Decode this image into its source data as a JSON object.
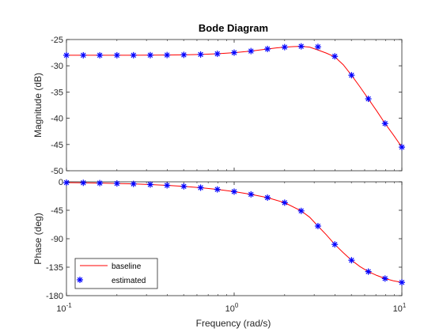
{
  "chart_data": {
    "type": "line",
    "title": "Bode Diagram",
    "xlabel": "Frequency  (rad/s)",
    "x_scale": "log",
    "xlim": [
      0.1,
      10
    ],
    "x_ticks": [
      {
        "value": 0.1,
        "base": "10",
        "exp": "-1"
      },
      {
        "value": 1,
        "base": "10",
        "exp": "0"
      },
      {
        "value": 10,
        "base": "10",
        "exp": "1"
      }
    ],
    "grid": false,
    "legend_position": "bottom-left",
    "colors": {
      "baseline": "#ff0000",
      "estimated": "#0000ff",
      "axis": "#262626"
    },
    "series": [
      {
        "name": "baseline",
        "style": "line"
      },
      {
        "name": "estimated",
        "style": "star-markers"
      }
    ],
    "panels": [
      {
        "ylabel": "Magnitude (dB)",
        "ylim": [
          -50,
          -25
        ],
        "yticks": [
          -50,
          -45,
          -40,
          -35,
          -30,
          -25
        ],
        "baseline": {
          "x": [
            0.1,
            0.126,
            0.158,
            0.2,
            0.251,
            0.316,
            0.398,
            0.501,
            0.631,
            0.794,
            1.0,
            1.26,
            1.58,
            1.78,
            2.0,
            2.24,
            2.51,
            2.82,
            3.16,
            3.55,
            3.98,
            4.47,
            5.01,
            5.62,
            6.31,
            7.08,
            7.94,
            8.91,
            10.0
          ],
          "y": [
            -28.0,
            -28.0,
            -28.0,
            -28.0,
            -27.99,
            -27.98,
            -27.96,
            -27.92,
            -27.85,
            -27.72,
            -27.5,
            -27.2,
            -26.8,
            -26.6,
            -26.45,
            -26.35,
            -26.3,
            -26.45,
            -27.0,
            -27.6,
            -28.3,
            -29.8,
            -31.8,
            -34.0,
            -36.3,
            -38.6,
            -41.0,
            -43.2,
            -45.5
          ]
        },
        "estimated": {
          "x": [
            0.1,
            0.126,
            0.158,
            0.2,
            0.251,
            0.316,
            0.398,
            0.501,
            0.631,
            0.794,
            1.0,
            1.26,
            1.58,
            2.0,
            2.51,
            3.16,
            3.98,
            5.01,
            6.31,
            7.94,
            10.0
          ],
          "y": [
            -28.0,
            -28.0,
            -28.0,
            -28.0,
            -27.99,
            -27.98,
            -27.96,
            -27.92,
            -27.85,
            -27.72,
            -27.5,
            -27.2,
            -26.8,
            -26.45,
            -26.3,
            -26.4,
            -28.2,
            -31.8,
            -36.3,
            -41.0,
            -45.5
          ]
        }
      },
      {
        "ylabel": "Phase (deg)",
        "ylim": [
          -180,
          0
        ],
        "yticks": [
          -180,
          -135,
          -90,
          -45,
          0
        ],
        "baseline": {
          "x": [
            0.1,
            0.126,
            0.158,
            0.2,
            0.251,
            0.316,
            0.398,
            0.501,
            0.631,
            0.794,
            1.0,
            1.26,
            1.58,
            2.0,
            2.51,
            2.82,
            3.16,
            3.55,
            3.98,
            4.47,
            5.01,
            5.62,
            6.31,
            7.08,
            7.94,
            8.91,
            10.0
          ],
          "y": [
            -1.3,
            -1.6,
            -2.0,
            -2.6,
            -3.3,
            -4.3,
            -5.6,
            -7.2,
            -9.3,
            -12.0,
            -15.5,
            -19.8,
            -25.0,
            -33.0,
            -46.0,
            -56.0,
            -70.0,
            -84.0,
            -99.0,
            -112.0,
            -124.0,
            -134.0,
            -142.0,
            -148.0,
            -153.0,
            -156.5,
            -159.0
          ]
        },
        "estimated": {
          "x": [
            0.1,
            0.126,
            0.158,
            0.2,
            0.251,
            0.316,
            0.398,
            0.501,
            0.631,
            0.794,
            1.0,
            1.26,
            1.58,
            2.0,
            2.51,
            3.16,
            3.98,
            5.01,
            6.31,
            7.94,
            10.0
          ],
          "y": [
            -1.3,
            -1.6,
            -2.0,
            -2.6,
            -3.3,
            -4.3,
            -5.6,
            -7.2,
            -9.3,
            -12.0,
            -15.5,
            -19.8,
            -25.0,
            -33.0,
            -46.0,
            -70.0,
            -99.0,
            -124.0,
            -142.0,
            -153.0,
            -159.0
          ]
        }
      }
    ]
  }
}
